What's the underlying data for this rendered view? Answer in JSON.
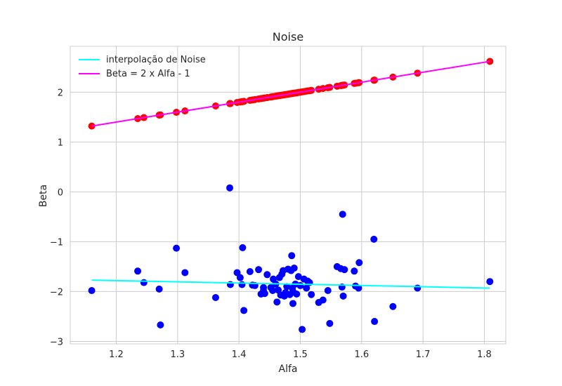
{
  "chart_data": {
    "type": "scatter",
    "title": "Noise",
    "xlabel": "Alfa",
    "ylabel": "Beta",
    "xlim": [
      1.125,
      1.835
    ],
    "ylim": [
      -3.05,
      2.92
    ],
    "xticks": [
      {
        "value": 1.2,
        "label": "1.2"
      },
      {
        "value": 1.3,
        "label": "1.3"
      },
      {
        "value": 1.4,
        "label": "1.4"
      },
      {
        "value": 1.5,
        "label": "1.5"
      },
      {
        "value": 1.6,
        "label": "1.6"
      },
      {
        "value": 1.7,
        "label": "1.7"
      },
      {
        "value": 1.8,
        "label": "1.8"
      }
    ],
    "yticks": [
      {
        "value": -3,
        "label": "−3"
      },
      {
        "value": -2,
        "label": "−2"
      },
      {
        "value": -1,
        "label": "−1"
      },
      {
        "value": 0,
        "label": "0"
      },
      {
        "value": 1,
        "label": "1"
      },
      {
        "value": 2,
        "label": "2"
      }
    ],
    "grid": true,
    "legend": {
      "position": "top-left",
      "entries": [
        {
          "label": "interpolação de Noise",
          "color": "#00ffff"
        },
        {
          "label": "Beta = 2 x Alfa - 1",
          "color": "#ff00ff"
        }
      ]
    },
    "series": [
      {
        "kind": "scatter",
        "color": "#0000ff",
        "x": [
          1.16,
          1.235,
          1.245,
          1.27,
          1.272,
          1.298,
          1.312,
          1.362,
          1.385,
          1.386,
          1.397,
          1.402,
          1.405,
          1.406,
          1.408,
          1.418,
          1.422,
          1.426,
          1.432,
          1.436,
          1.44,
          1.44,
          1.442,
          1.446,
          1.452,
          1.455,
          1.456,
          1.46,
          1.462,
          1.464,
          1.466,
          1.468,
          1.47,
          1.472,
          1.474,
          1.476,
          1.478,
          1.48,
          1.483,
          1.485,
          1.486,
          1.487,
          1.488,
          1.488,
          1.49,
          1.492,
          1.494,
          1.497,
          1.5,
          1.503,
          1.506,
          1.51,
          1.512,
          1.515,
          1.518,
          1.53,
          1.537,
          1.545,
          1.548,
          1.56,
          1.566,
          1.568,
          1.569,
          1.57,
          1.572,
          1.588,
          1.59,
          1.595,
          1.596,
          1.62,
          1.621,
          1.651,
          1.691,
          1.809
        ],
        "y": [
          -1.98,
          -1.59,
          -1.82,
          -1.95,
          -2.67,
          -1.13,
          -1.62,
          -2.12,
          0.08,
          -1.86,
          -1.62,
          -1.72,
          -1.86,
          -1.12,
          -2.38,
          -1.6,
          -1.87,
          -1.88,
          -1.56,
          -2.05,
          -1.92,
          -1.98,
          -2.04,
          -1.66,
          -1.92,
          -1.98,
          -1.75,
          -1.85,
          -2.21,
          -1.97,
          -1.72,
          -2.07,
          -1.65,
          -1.58,
          -2.09,
          -2.02,
          -1.9,
          -1.55,
          -2.06,
          -1.58,
          -1.28,
          -1.93,
          -2.0,
          -2.24,
          -1.53,
          -1.85,
          -2.05,
          -1.7,
          -1.88,
          -2.76,
          -1.75,
          -1.93,
          -1.79,
          -1.82,
          -2.06,
          -2.22,
          -2.17,
          -1.98,
          -2.64,
          -1.5,
          -1.54,
          -1.91,
          -0.45,
          -2.09,
          -1.56,
          -1.59,
          -1.89,
          -1.93,
          -1.42,
          -0.95,
          -2.6,
          -2.3,
          -1.93,
          -1.8
        ]
      },
      {
        "kind": "scatter",
        "color": "#ff0000",
        "x": [
          1.16,
          1.235,
          1.245,
          1.27,
          1.272,
          1.298,
          1.312,
          1.362,
          1.385,
          1.386,
          1.397,
          1.402,
          1.405,
          1.406,
          1.408,
          1.418,
          1.422,
          1.426,
          1.432,
          1.436,
          1.44,
          1.442,
          1.446,
          1.452,
          1.455,
          1.456,
          1.46,
          1.462,
          1.464,
          1.466,
          1.468,
          1.47,
          1.472,
          1.474,
          1.476,
          1.478,
          1.48,
          1.483,
          1.485,
          1.486,
          1.487,
          1.488,
          1.49,
          1.492,
          1.494,
          1.497,
          1.5,
          1.503,
          1.506,
          1.51,
          1.512,
          1.515,
          1.518,
          1.53,
          1.537,
          1.545,
          1.548,
          1.56,
          1.566,
          1.568,
          1.569,
          1.57,
          1.572,
          1.588,
          1.59,
          1.595,
          1.596,
          1.62,
          1.621,
          1.651,
          1.691,
          1.809
        ],
        "y": [
          1.32,
          1.47,
          1.49,
          1.54,
          1.544,
          1.596,
          1.624,
          1.724,
          1.77,
          1.772,
          1.794,
          1.804,
          1.81,
          1.812,
          1.816,
          1.836,
          1.844,
          1.852,
          1.864,
          1.872,
          1.88,
          1.884,
          1.892,
          1.904,
          1.91,
          1.912,
          1.92,
          1.924,
          1.928,
          1.932,
          1.936,
          1.94,
          1.944,
          1.948,
          1.952,
          1.956,
          1.96,
          1.966,
          1.97,
          1.972,
          1.974,
          1.976,
          1.98,
          1.984,
          1.988,
          1.994,
          2.0,
          2.006,
          2.012,
          2.02,
          2.024,
          2.03,
          2.036,
          2.06,
          2.074,
          2.09,
          2.096,
          2.12,
          2.132,
          2.136,
          2.138,
          2.14,
          2.144,
          2.176,
          2.18,
          2.19,
          2.192,
          2.24,
          2.242,
          2.302,
          2.382,
          2.618
        ]
      },
      {
        "kind": "line",
        "name": "interpolação de Noise",
        "color": "#00ffff",
        "x": [
          1.16,
          1.809
        ],
        "y": [
          -1.77,
          -1.93
        ]
      },
      {
        "kind": "line",
        "name": "Beta = 2 x Alfa - 1",
        "color": "#ff00ff",
        "x": [
          1.16,
          1.809
        ],
        "y": [
          1.32,
          2.618
        ]
      }
    ]
  }
}
